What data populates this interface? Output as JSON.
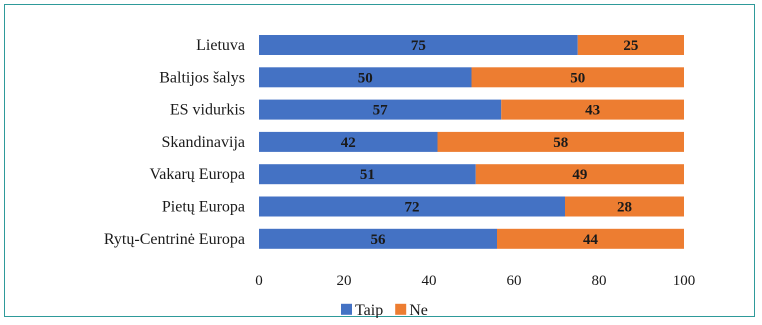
{
  "chart_data": {
    "type": "bar",
    "orientation": "horizontal",
    "stacked": true,
    "categories": [
      "Lietuva",
      "Baltijos šalys",
      "ES vidurkis",
      "Skandinavija",
      "Vakarų Europa",
      "Pietų Europa",
      "Rytų-Centrinė Europa"
    ],
    "series": [
      {
        "name": "Taip",
        "color": "#4472c4",
        "values": [
          75,
          50,
          57,
          42,
          51,
          72,
          56
        ]
      },
      {
        "name": "Ne",
        "color": "#ed7d31",
        "values": [
          25,
          50,
          43,
          58,
          49,
          28,
          44
        ]
      }
    ],
    "xlim": [
      0,
      100
    ],
    "xticks": [
      "0",
      "20",
      "40",
      "60",
      "80",
      "100"
    ],
    "grid": false,
    "legend_position": "bottom",
    "data_labels": true
  }
}
